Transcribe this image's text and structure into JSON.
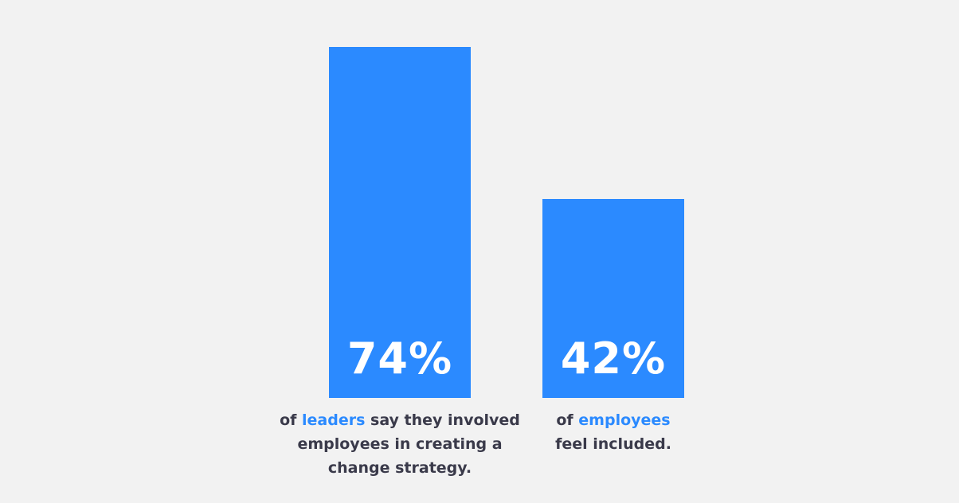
{
  "chart_data": {
    "type": "bar",
    "ylim": [
      0,
      100
    ],
    "colors": {
      "bar": "#2b8aff",
      "highlight": "#2b8aff",
      "caption": "#3a3a4a",
      "background": "#f2f2f2"
    },
    "bars": [
      {
        "value": 74,
        "value_label": "74%",
        "caption": {
          "pre": "of ",
          "highlight": "leaders",
          "line1_rest": " say they involved",
          "line2": "employees in creating a",
          "line3": "change strategy."
        }
      },
      {
        "value": 42,
        "value_label": "42%",
        "caption": {
          "pre": "of ",
          "highlight": "employees",
          "line1_rest": "",
          "line2": "feel included.",
          "line3": ""
        }
      }
    ]
  }
}
